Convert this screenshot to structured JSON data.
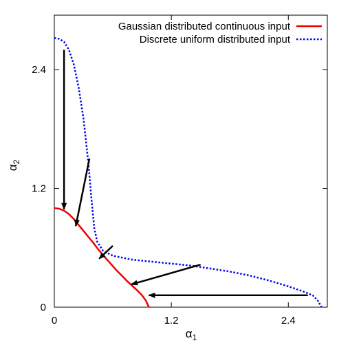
{
  "chart_data": {
    "type": "line",
    "title": "",
    "xlabel": "α",
    "xlabel_sub": "1",
    "ylabel": "α",
    "ylabel_sub": "2",
    "xlim": [
      0,
      2.8
    ],
    "ylim": [
      0,
      2.95
    ],
    "xticks": [
      0,
      1.2,
      2.4
    ],
    "xtick_labels": [
      "0",
      "1.2",
      "2.4"
    ],
    "yticks": [
      0,
      1.2,
      2.4
    ],
    "ytick_labels": [
      "0",
      "1.2",
      "2.4"
    ],
    "grid": false,
    "legend_position": "top-right",
    "series": [
      {
        "name": "Gaussian distributed continuous input",
        "color": "#ee0000",
        "style": "solid",
        "points": [
          [
            0.0,
            1.0
          ],
          [
            0.05,
            0.995
          ],
          [
            0.1,
            0.975
          ],
          [
            0.15,
            0.94
          ],
          [
            0.2,
            0.89
          ],
          [
            0.25,
            0.83
          ],
          [
            0.3,
            0.77
          ],
          [
            0.35,
            0.71
          ],
          [
            0.4,
            0.65
          ],
          [
            0.45,
            0.585
          ],
          [
            0.5,
            0.525
          ],
          [
            0.55,
            0.47
          ],
          [
            0.6,
            0.415
          ],
          [
            0.65,
            0.36
          ],
          [
            0.7,
            0.31
          ],
          [
            0.75,
            0.26
          ],
          [
            0.8,
            0.215
          ],
          [
            0.85,
            0.17
          ],
          [
            0.9,
            0.12
          ],
          [
            0.94,
            0.065
          ],
          [
            0.97,
            0.0
          ]
        ]
      },
      {
        "name": "Discrete uniform distributed input",
        "color": "#0000ee",
        "style": "dotted",
        "points": [
          [
            0.0,
            2.72
          ],
          [
            0.05,
            2.71
          ],
          [
            0.1,
            2.68
          ],
          [
            0.15,
            2.6
          ],
          [
            0.2,
            2.45
          ],
          [
            0.25,
            2.22
          ],
          [
            0.3,
            1.9
          ],
          [
            0.35,
            1.45
          ],
          [
            0.38,
            1.1
          ],
          [
            0.41,
            0.8
          ],
          [
            0.44,
            0.66
          ],
          [
            0.5,
            0.57
          ],
          [
            0.6,
            0.52
          ],
          [
            0.8,
            0.48
          ],
          [
            1.0,
            0.46
          ],
          [
            1.2,
            0.44
          ],
          [
            1.4,
            0.42
          ],
          [
            1.6,
            0.39
          ],
          [
            1.8,
            0.36
          ],
          [
            2.0,
            0.32
          ],
          [
            2.2,
            0.27
          ],
          [
            2.4,
            0.21
          ],
          [
            2.55,
            0.16
          ],
          [
            2.65,
            0.12
          ],
          [
            2.7,
            0.07
          ],
          [
            2.73,
            0.02
          ],
          [
            2.74,
            0.0
          ]
        ]
      }
    ],
    "arrows": [
      {
        "from": [
          0.1,
          2.6
        ],
        "to": [
          0.1,
          0.99
        ]
      },
      {
        "from": [
          0.36,
          1.5
        ],
        "to": [
          0.22,
          0.82
        ]
      },
      {
        "from": [
          0.6,
          0.62
        ],
        "to": [
          0.46,
          0.49
        ]
      },
      {
        "from": [
          1.5,
          0.43
        ],
        "to": [
          0.79,
          0.23
        ]
      },
      {
        "from": [
          2.6,
          0.12
        ],
        "to": [
          0.97,
          0.12
        ]
      }
    ]
  }
}
